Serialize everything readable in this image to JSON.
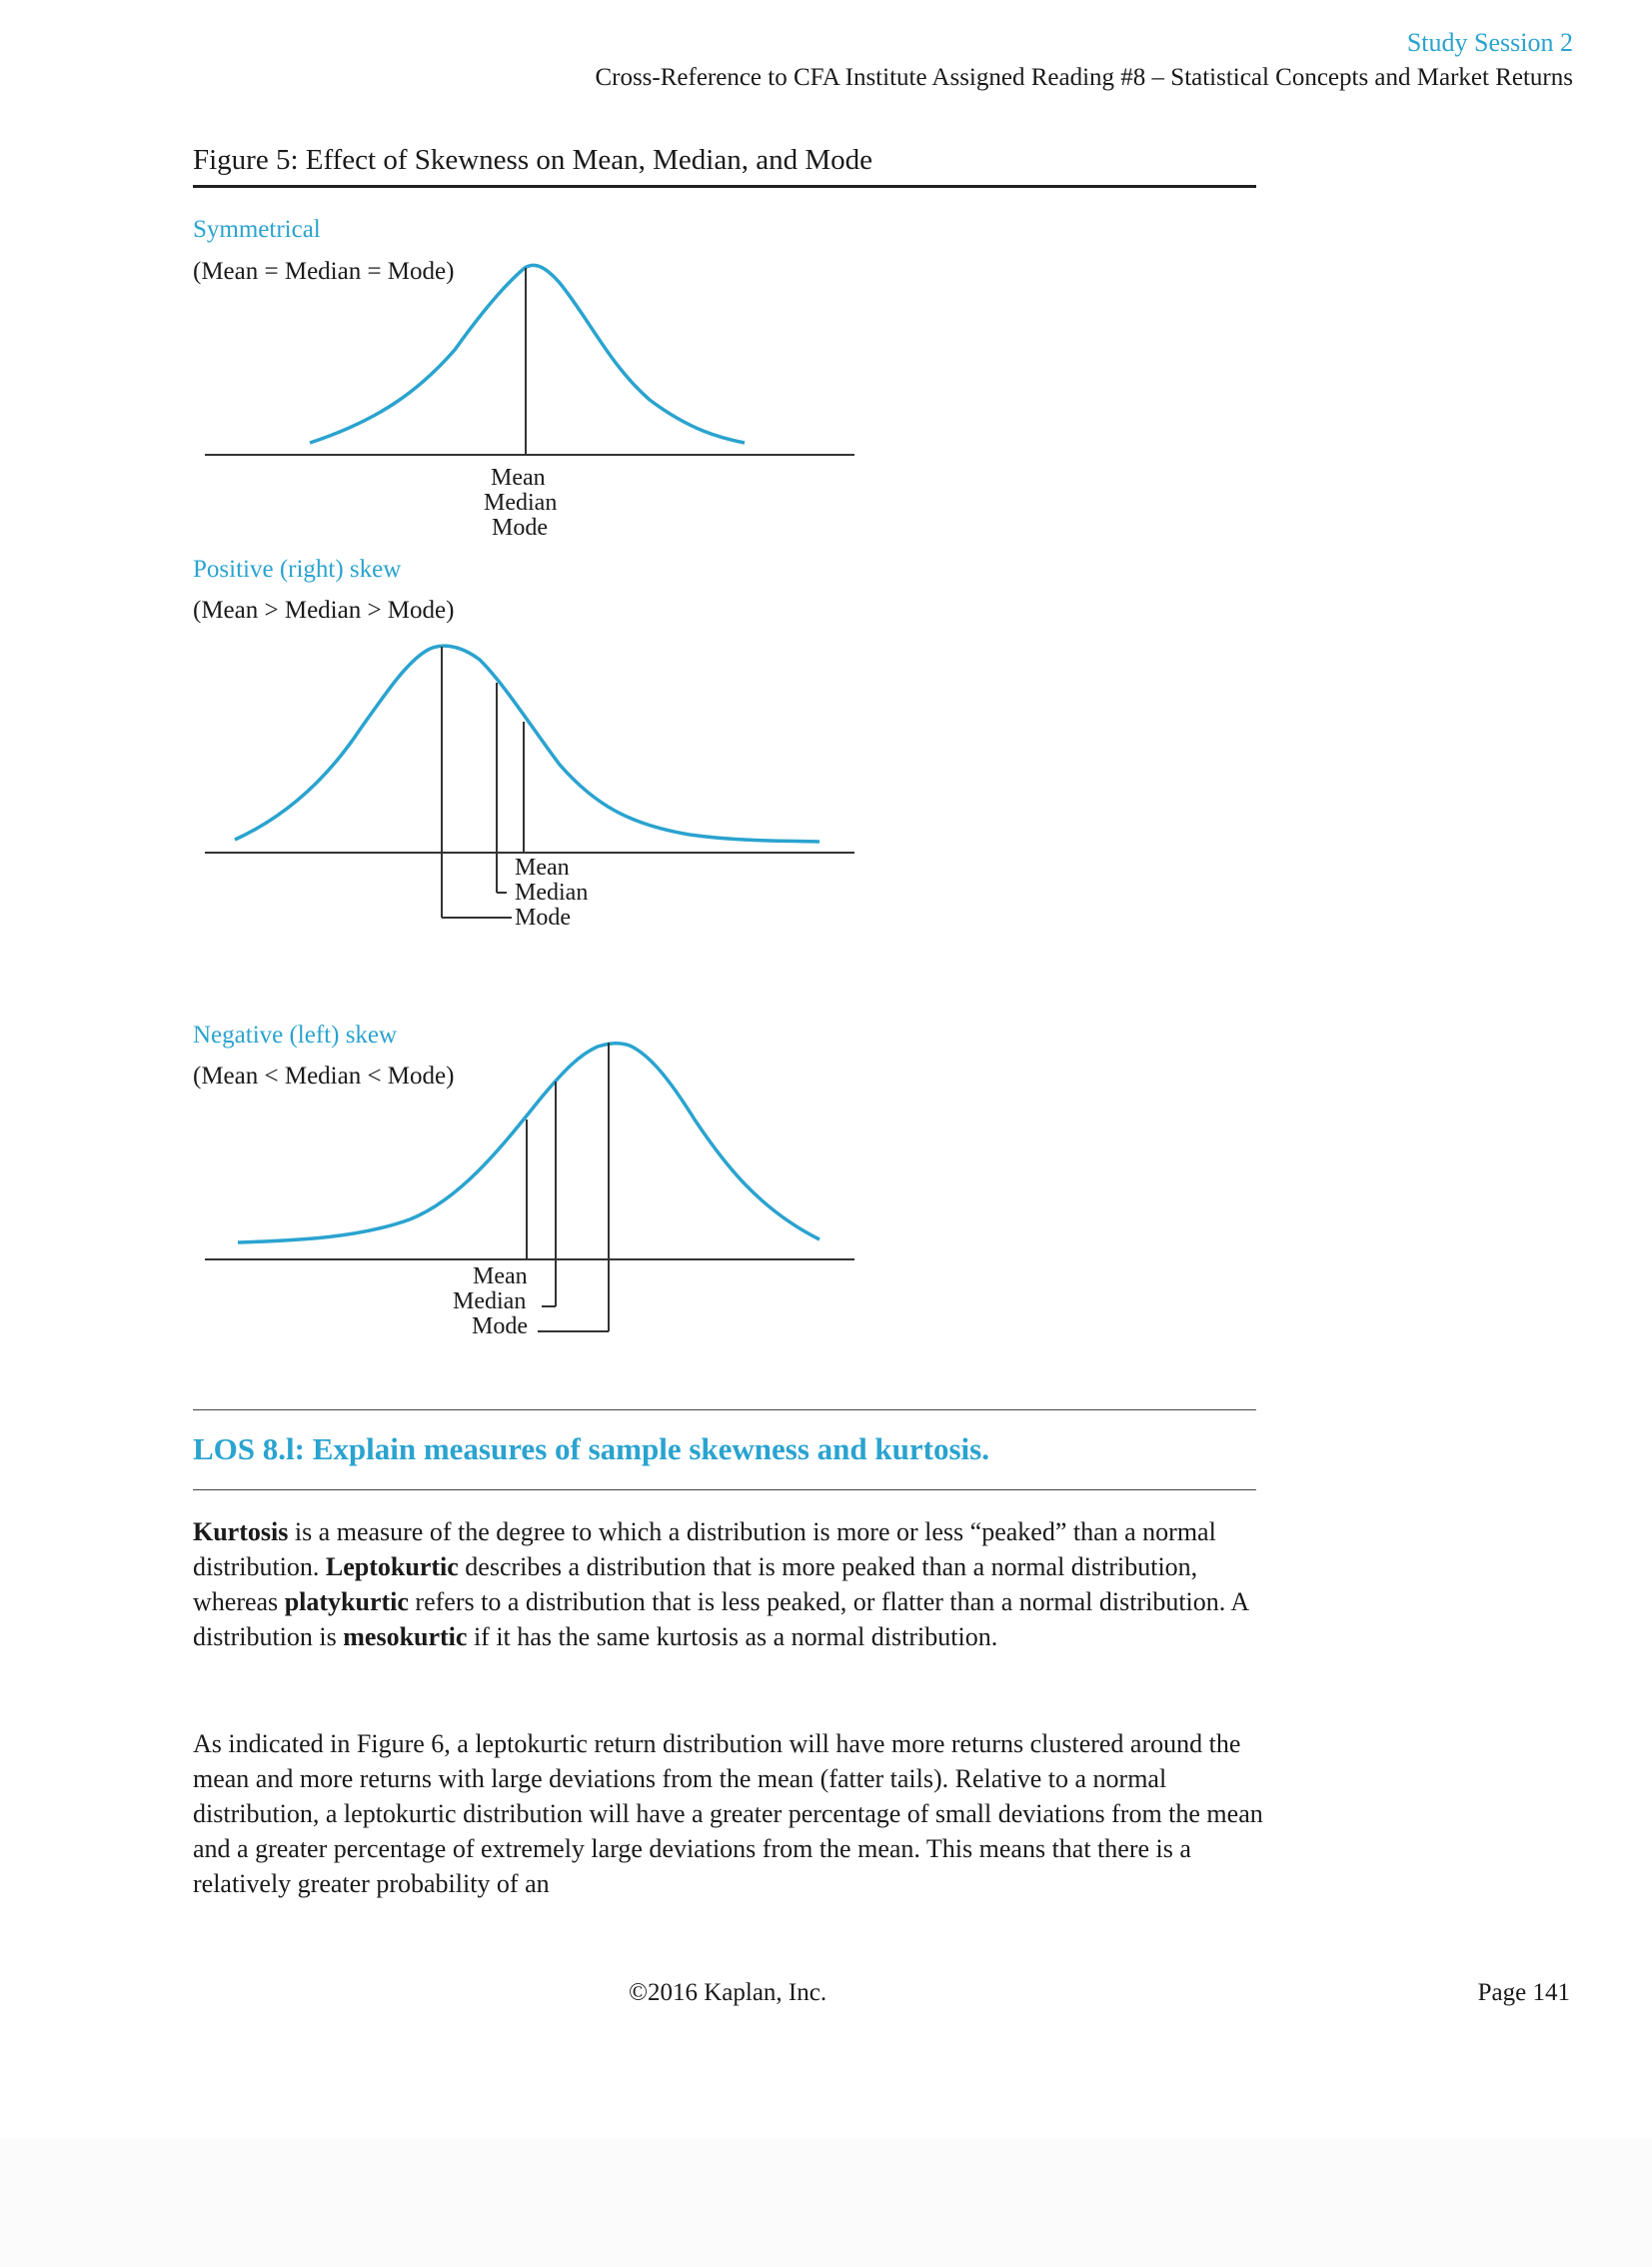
{
  "header": {
    "session": "Study Session 2",
    "cross_reference": "Cross-Reference to CFA Institute Assigned Reading #8 – Statistical Concepts and Market Returns"
  },
  "figure": {
    "title": "Figure 5: Effect of Skewness on Mean, Median, and Mode",
    "curve_color": "#2aa3cf",
    "panels": [
      {
        "label": "Symmetrical",
        "relation": "(Mean = Median = Mode)",
        "stats": [
          "Mean",
          "Median",
          "Mode"
        ]
      },
      {
        "label": "Positive (right) skew",
        "relation": "(Mean > Median > Mode)",
        "stats": [
          "Mean",
          "Median",
          "Mode"
        ]
      },
      {
        "label": "Negative (left) skew",
        "relation": "(Mean < Median < Mode)",
        "stats": [
          "Mean",
          "Median",
          "Mode"
        ]
      }
    ]
  },
  "los": {
    "heading": "LOS 8.l: Explain measures of sample skewness and kurtosis."
  },
  "body": {
    "p1": {
      "t1": "Kurtosis",
      "t2": " is a measure of the degree to which a distribution is more or less “peaked” than a normal distribution. ",
      "t3": "Leptokurtic",
      "t4": " describes a distribution that is more peaked than a normal distribution, whereas ",
      "t5": "platykurtic",
      "t6": " refers to a distribution that is less peaked, or flatter than a normal distribution. A distribution is ",
      "t7": "mesokurtic",
      "t8": " if it has the same kurtosis as a normal distribution."
    },
    "p2": "As indicated in Figure 6, a leptokurtic return distribution will have more returns clustered around the mean and more returns with large deviations from the mean (fatter tails). Relative to a normal distribution, a leptokurtic distribution will have a greater percentage of small deviations from the mean and a greater percentage of extremely large deviations from the mean. This means that there is a relatively greater probability of an"
  },
  "footer": {
    "copyright": "©2016 Kaplan, Inc.",
    "page": "Page 141"
  }
}
